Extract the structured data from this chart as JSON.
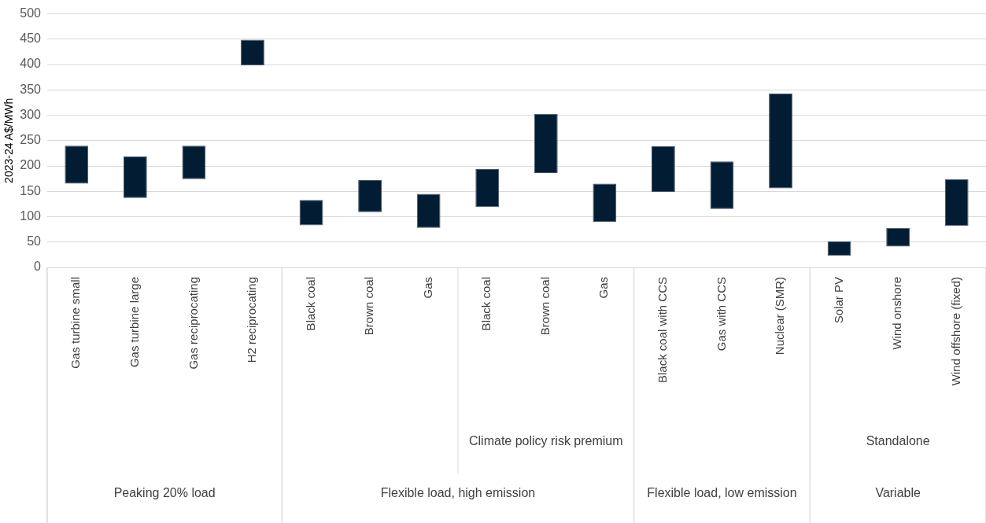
{
  "chart_data": {
    "type": "bar",
    "ylabel": "2023-24 A$/MWh",
    "categories": [
      "Gas turbine small",
      "Gas turbine large",
      "Gas reciprocating",
      "H2 reciprocating",
      "Black coal",
      "Brown coal",
      "Gas",
      "Black coal",
      "Brown coal",
      "Gas",
      "Black coal with CCS",
      "Gas with CCS",
      "Nuclear (SMR)",
      "Solar PV",
      "Wind onshore",
      "Wind offshore (fixed)"
    ],
    "base": [
      165,
      137,
      174,
      398,
      83,
      109,
      78,
      119,
      186,
      90,
      149,
      115,
      156,
      23,
      41,
      82
    ],
    "values": [
      75,
      82,
      66,
      51,
      50,
      63,
      67,
      75,
      117,
      75,
      90,
      94,
      187,
      28,
      37,
      92
    ],
    "color": "#021d33",
    "ylim": [
      0,
      500
    ],
    "yticks": [
      0,
      50,
      100,
      150,
      200,
      250,
      300,
      350,
      400,
      450,
      500
    ],
    "grid": "y",
    "legend": false,
    "annotations": [
      "Climate policy risk premium",
      "Standalone",
      "Peaking 20% load",
      "Flexible load, high emission",
      "Flexible load, low emission",
      "Variable"
    ]
  }
}
